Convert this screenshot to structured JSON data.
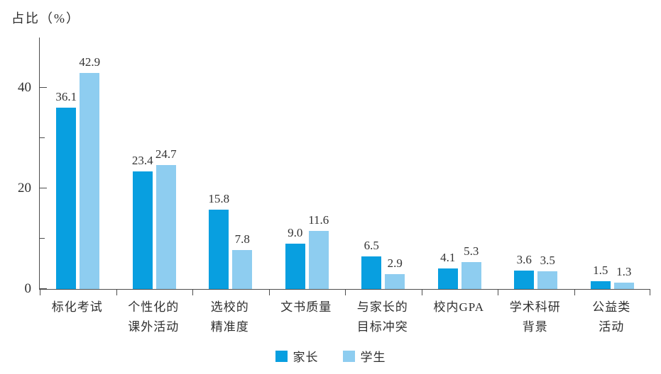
{
  "title": "占比（%）",
  "colors": {
    "parents": "#089fe0",
    "students": "#8ecdf0",
    "axis": "#4d4d4d",
    "text": "#333333"
  },
  "chart_data": {
    "type": "bar",
    "title": "占比（%）",
    "ylabel": "占比（%）",
    "xlabel": "",
    "categories": [
      "标化考试",
      "个性化的\n课外活动",
      "选校的\n精准度",
      "文书质量",
      "与家长的\n目标冲突",
      "校内GPA",
      "学术科研\n背景",
      "公益类活动"
    ],
    "series": [
      {
        "name": "家长",
        "color": "#089fe0",
        "values": [
          36.1,
          23.4,
          15.8,
          9.0,
          6.5,
          4.1,
          3.6,
          1.5
        ]
      },
      {
        "name": "学生",
        "color": "#8ecdf0",
        "values": [
          42.9,
          24.7,
          7.8,
          11.6,
          2.9,
          5.3,
          3.5,
          1.3
        ]
      }
    ],
    "ylim": [
      0,
      50
    ],
    "yticks_major": [
      0,
      20,
      40
    ],
    "yticks_minor": [
      10,
      30
    ],
    "grid": false,
    "legend_position": "bottom",
    "value_labels": true,
    "value_decimals": 1
  }
}
